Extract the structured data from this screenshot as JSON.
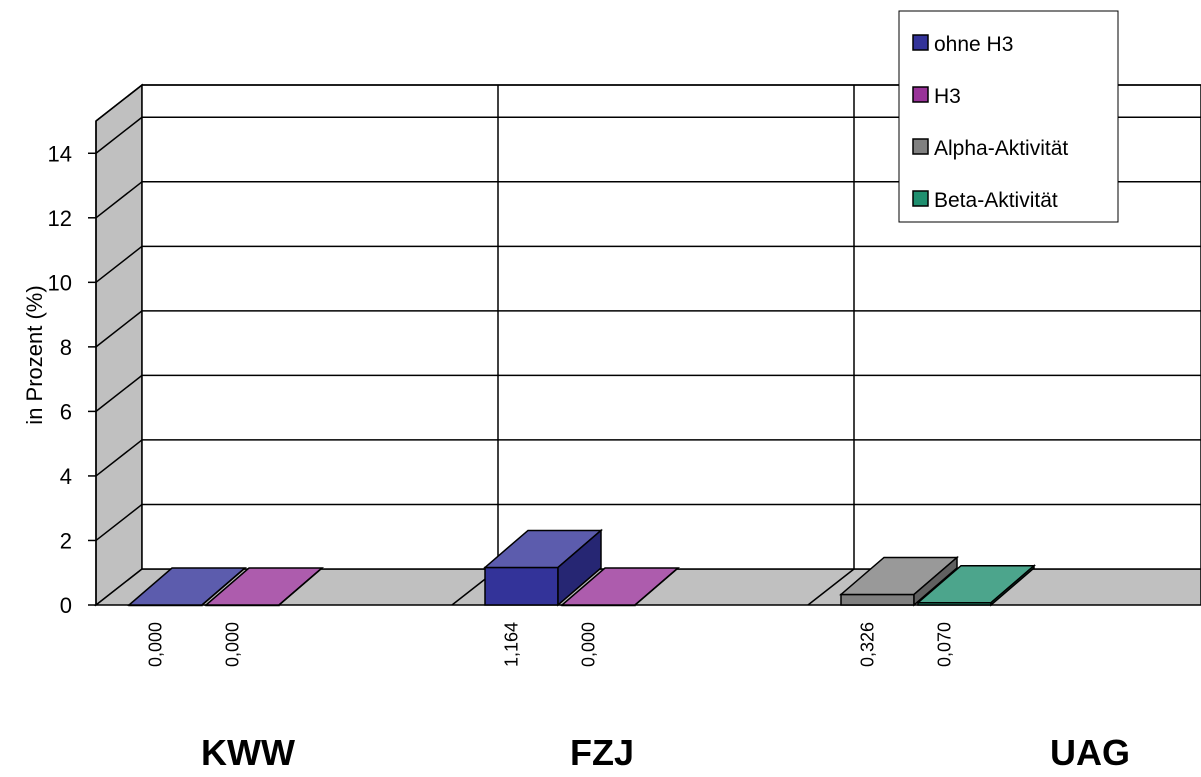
{
  "chart_data": {
    "type": "bar",
    "ylabel": "in Prozent (%)",
    "ylim": [
      0,
      15
    ],
    "yticks": [
      0,
      2,
      4,
      6,
      8,
      10,
      12,
      14
    ],
    "categories": [
      "KWW",
      "FZJ",
      "UAG"
    ],
    "series": [
      {
        "name": "ohne H3",
        "color": "#333399"
      },
      {
        "name": "H3",
        "color": "#993399"
      },
      {
        "name": "Alpha-Aktivität",
        "color": "#808080"
      },
      {
        "name": "Beta-Aktivität",
        "color": "#1f8f6f"
      }
    ],
    "bars": [
      {
        "category": "KWW",
        "series": "ohne H3",
        "value": 0.0,
        "label": "0,000"
      },
      {
        "category": "KWW",
        "series": "H3",
        "value": 0.0,
        "label": "0,000"
      },
      {
        "category": "FZJ",
        "series": "ohne H3",
        "value": 1.164,
        "label": "1,164"
      },
      {
        "category": "FZJ",
        "series": "H3",
        "value": 0.0,
        "label": "0,000"
      },
      {
        "category": "UAG",
        "series": "Alpha-Aktivität",
        "value": 0.326,
        "label": "0,326"
      },
      {
        "category": "UAG",
        "series": "Beta-Aktivität",
        "value": 0.07,
        "label": "0,070"
      }
    ],
    "grid": true,
    "legend": "top-right"
  }
}
